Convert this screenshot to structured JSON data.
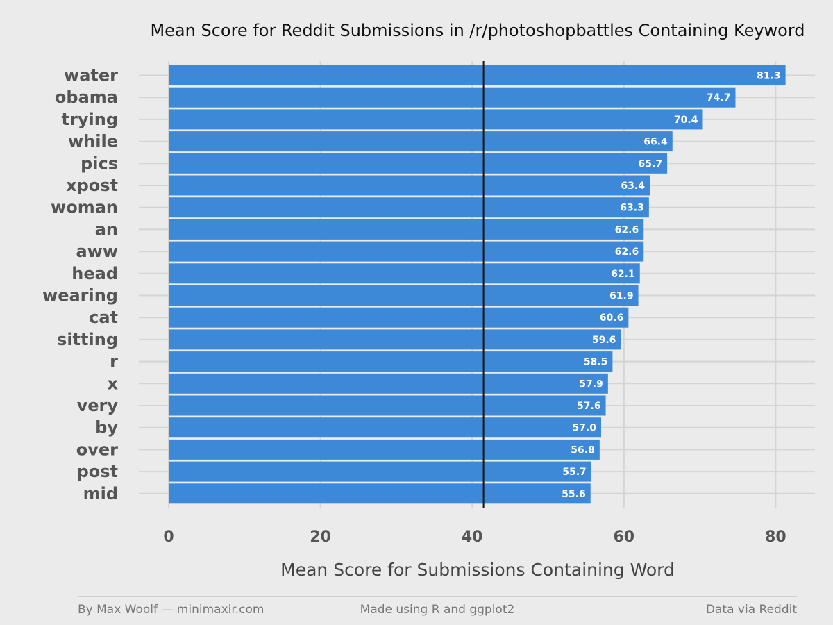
{
  "chart_data": {
    "type": "bar",
    "orientation": "horizontal",
    "title": "Mean Score for Reddit Submissions in /r/photoshopbattles Containing Keyword",
    "xlabel": "Mean Score for Submissions Containing Word",
    "ylabel": "",
    "xlim": [
      0,
      85
    ],
    "x_ticks": [
      0,
      20,
      40,
      60,
      80
    ],
    "reference_line": 41.5,
    "grid": true,
    "bar_color": "#3d89d8",
    "reference_line_color": "#111111",
    "categories": [
      "water",
      "obama",
      "trying",
      "while",
      "pics",
      "xpost",
      "woman",
      "an",
      "aww",
      "head",
      "wearing",
      "cat",
      "sitting",
      "r",
      "x",
      "very",
      "by",
      "over",
      "post",
      "mid"
    ],
    "values": [
      81.3,
      74.7,
      70.4,
      66.4,
      65.7,
      63.4,
      63.3,
      62.6,
      62.6,
      62.1,
      61.9,
      60.6,
      59.6,
      58.5,
      57.9,
      57.6,
      57.0,
      56.8,
      55.7,
      55.6
    ],
    "value_labels": [
      "81.3",
      "74.7",
      "70.4",
      "66.4",
      "65.7",
      "63.4",
      "63.3",
      "62.6",
      "62.6",
      "62.1",
      "61.9",
      "60.6",
      "59.6",
      "58.5",
      "57.9",
      "57.6",
      "57.0",
      "56.8",
      "55.7",
      "55.6"
    ]
  },
  "footer": {
    "left": "By Max Woolf — minimaxir.com",
    "center": "Made using R and ggplot2",
    "right": "Data via Reddit"
  }
}
